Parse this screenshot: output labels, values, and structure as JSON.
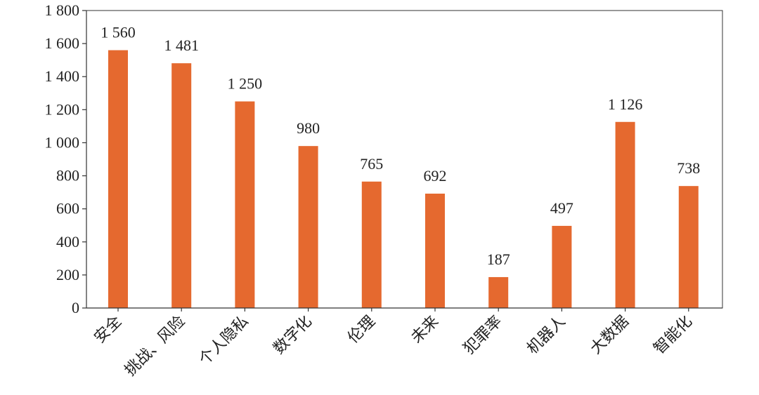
{
  "chart_data": {
    "type": "bar",
    "categories": [
      "安全",
      "挑战、风险",
      "个人隐私",
      "数字化",
      "伦理",
      "未来",
      "犯罪率",
      "机器人",
      "大数据",
      "智能化"
    ],
    "values": [
      1560,
      1481,
      1250,
      980,
      765,
      692,
      187,
      497,
      1126,
      738
    ],
    "value_labels": [
      "1 560",
      "1 481",
      "1 250",
      "980",
      "765",
      "692",
      "187",
      "497",
      "1 126",
      "738"
    ],
    "yticks": [
      0,
      200,
      400,
      600,
      800,
      1000,
      1200,
      1400,
      1600,
      1800
    ],
    "ytick_labels": [
      "0",
      "200",
      "400",
      "600",
      "800",
      "1 000",
      "1 200",
      "1 400",
      "1 600",
      "1 800"
    ],
    "ylim": [
      0,
      1800
    ],
    "title": "",
    "xlabel": "",
    "ylabel": "",
    "bar_color": "#E5692F",
    "grid": false,
    "legend": false
  }
}
